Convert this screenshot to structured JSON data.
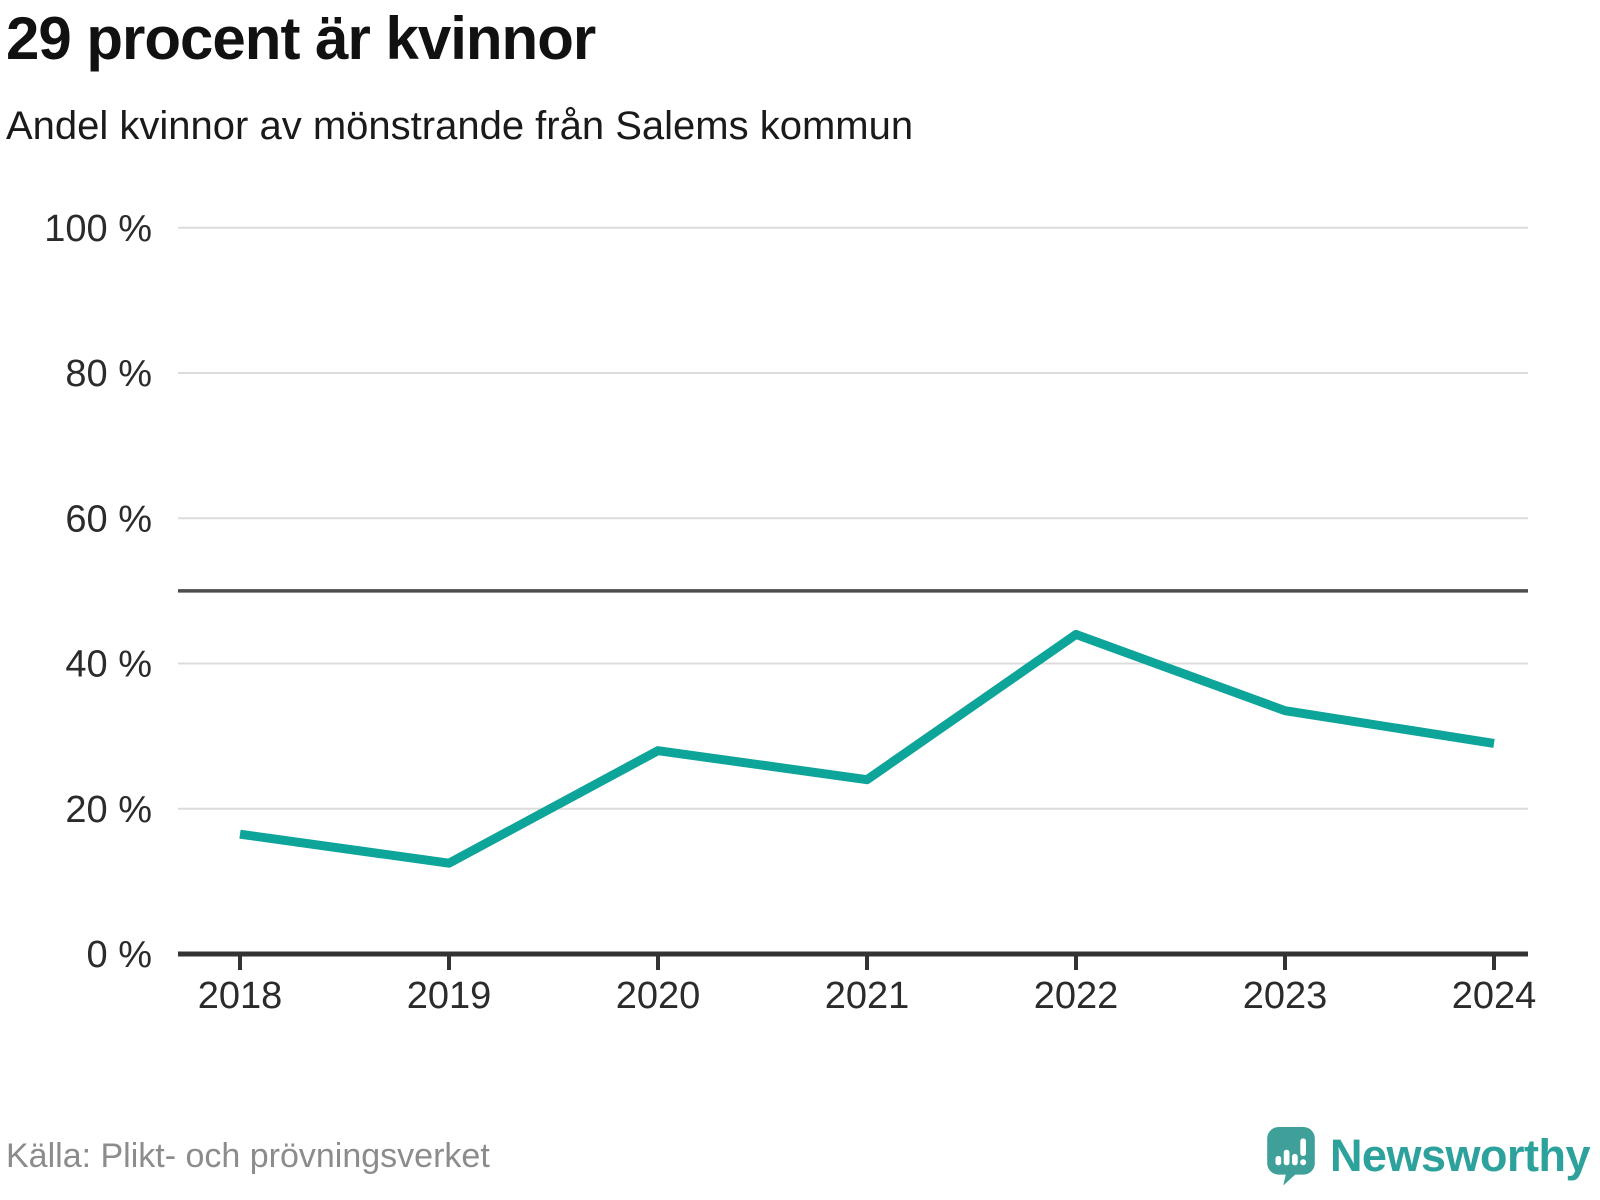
{
  "header": {
    "title": "29 procent är kvinnor",
    "subtitle": "Andel kvinnor av mönstrande från Salems kommun"
  },
  "chart_data": {
    "type": "line",
    "title": "29 procent är kvinnor",
    "subtitle": "Andel kvinnor av mönstrande från Salems kommun",
    "categories": [
      "2018",
      "2019",
      "2020",
      "2021",
      "2022",
      "2023",
      "2024"
    ],
    "series": [
      {
        "name": "Andel kvinnor av mönstrande",
        "values": [
          16.5,
          12.5,
          28,
          24,
          44,
          33.5,
          29
        ]
      }
    ],
    "xlabel": "",
    "ylabel": "",
    "ylim": [
      0,
      100
    ],
    "yticks": [
      {
        "value": 0,
        "label": "0 %"
      },
      {
        "value": 20,
        "label": "20 %"
      },
      {
        "value": 40,
        "label": "40 %"
      },
      {
        "value": 60,
        "label": "60 %"
      },
      {
        "value": 80,
        "label": "80 %"
      },
      {
        "value": 100,
        "label": "100 %"
      }
    ],
    "reference_line": {
      "value": 50
    },
    "grid": "horizontal",
    "legend": "none",
    "line_color": "#0da49a"
  },
  "footer": {
    "source": "Källa: Plikt- och prövningsverket",
    "brand": "Newsworthy"
  },
  "colors": {
    "line": "#0da49a",
    "gridline": "#dcdcdc",
    "reference_line": "#4d4d4d",
    "axis": "#333333",
    "axis_text": "#2b2b2b",
    "source_text": "#8c8c8c",
    "brand_teal": "#2da19b",
    "logo_bubble": "#3fa09a"
  }
}
